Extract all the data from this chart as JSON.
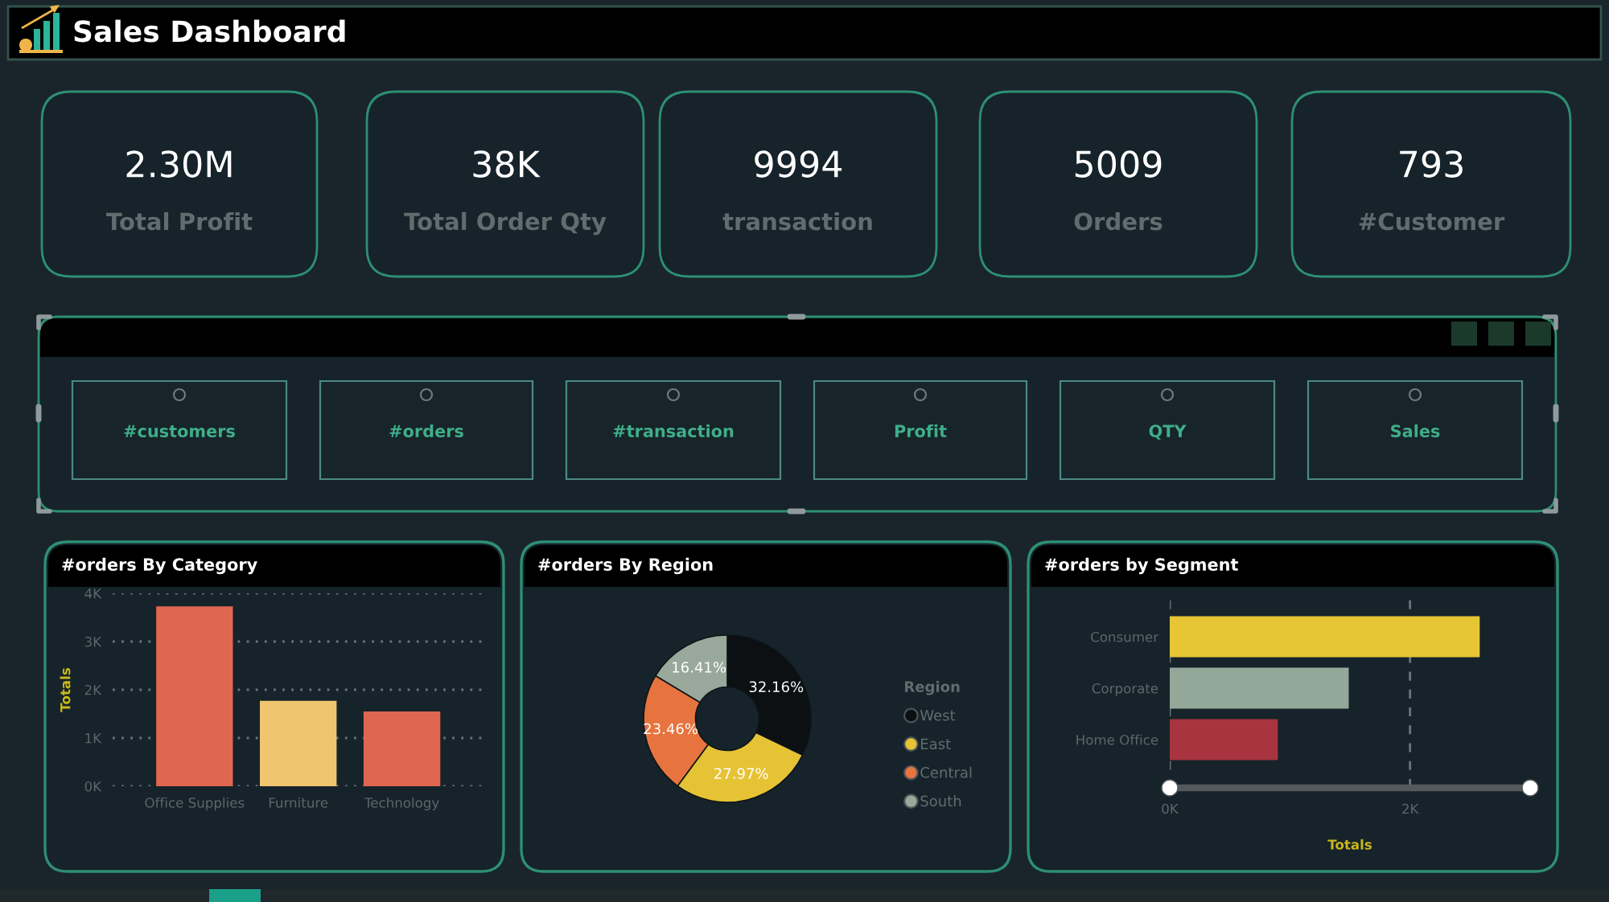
{
  "chart_data": [
    {
      "type": "other",
      "title": "Sales Dashboard",
      "annotations": [
        "2.30M",
        "Total Profit",
        "38K",
        "Total Order Qty",
        "9994",
        "transaction",
        "5009",
        "Orders",
        "793",
        "#Customer"
      ]
    },
    {
      "type": "other",
      "categories": [
        "#customers",
        "#orders",
        "#transaction",
        "Profit",
        "QTY",
        "Sales"
      ]
    },
    {
      "type": "bar",
      "title": "#orders By Category",
      "ylabel": "Totals",
      "categories": [
        "Office Supplies",
        "Furniture",
        "Technology"
      ],
      "values": [
        3.73,
        1.77,
        1.55
      ],
      "colors": [
        "#df6650",
        "#f0c570",
        "#df6650"
      ],
      "ylim": [
        0,
        4
      ],
      "yticks": [
        {
          "value": 0,
          "label": "0K"
        },
        {
          "value": 1,
          "label": "1K"
        },
        {
          "value": 2,
          "label": "2K"
        },
        {
          "value": 3,
          "label": "3K"
        },
        {
          "value": 4,
          "label": "4K"
        }
      ],
      "grid": "y"
    },
    {
      "type": "donut",
      "title": "#orders By Region",
      "legend_title": "Region",
      "categories": [
        "West",
        "East",
        "Central",
        "South"
      ],
      "values": [
        32.16,
        27.97,
        23.46,
        16.41
      ],
      "value_labels": [
        "32.16%",
        "27.97%",
        "23.46%",
        "16.41%"
      ],
      "colors": [
        "#0c1012",
        "#e6c335",
        "#e7743f",
        "#98a89a"
      ],
      "legend": "right"
    },
    {
      "type": "bar",
      "orientation": "horizontal",
      "title": "#orders by Segment",
      "xlabel": "Totals",
      "categories": [
        "Consumer",
        "Corporate",
        "Home Office"
      ],
      "values": [
        2.58,
        1.49,
        0.9
      ],
      "colors": [
        "#e6c635",
        "#93a898",
        "#a83440"
      ],
      "xlim": [
        0,
        3
      ],
      "xticks": [
        {
          "value": 0,
          "label": "0K"
        },
        {
          "value": 2,
          "label": "2K"
        }
      ],
      "grid": "x"
    }
  ]
}
